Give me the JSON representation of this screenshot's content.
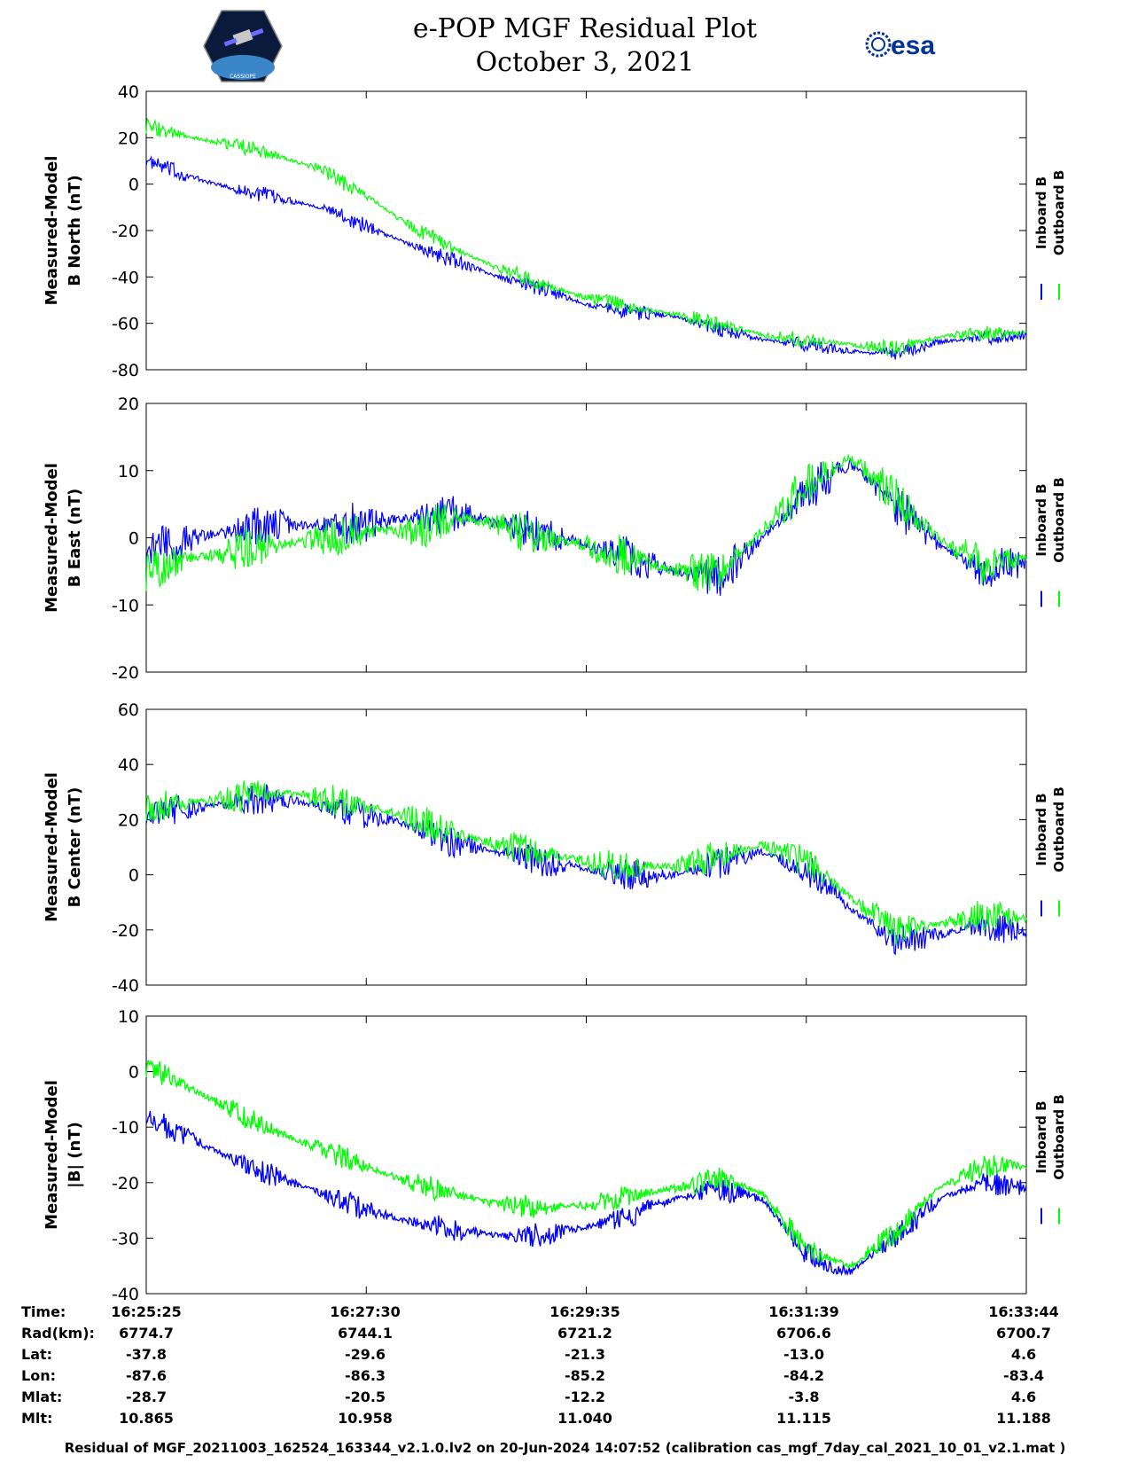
{
  "header": {
    "title": "e-POP MGF Residual Plot",
    "date": "October 3, 2021",
    "esa_logo_text": "esa",
    "left_logo_text": "CASSIOPE"
  },
  "colors": {
    "inboard": "#0000ff",
    "outboard": "#00ff00"
  },
  "chart_data": [
    {
      "type": "line",
      "ylabel": [
        "Measured-Model",
        "B North (nT)"
      ],
      "ylim": [
        -80,
        40
      ],
      "yticks": [
        40,
        20,
        0,
        -20,
        -40,
        -60,
        -80
      ],
      "legend": [
        "Inboard B",
        "Outboard B"
      ],
      "series": [
        {
          "name": "Inboard B",
          "x": [
            0,
            0.05,
            0.1,
            0.15,
            0.2,
            0.25,
            0.3,
            0.35,
            0.4,
            0.45,
            0.5,
            0.55,
            0.6,
            0.65,
            0.7,
            0.75,
            0.8,
            0.85,
            0.9,
            0.95,
            1.0
          ],
          "values": [
            10,
            3,
            -2,
            -6,
            -10,
            -18,
            -26,
            -33,
            -40,
            -45,
            -52,
            -55,
            -57,
            -62,
            -67,
            -69,
            -72,
            -73,
            -68,
            -66,
            -65
          ]
        },
        {
          "name": "Outboard B",
          "x": [
            0,
            0.05,
            0.1,
            0.15,
            0.2,
            0.25,
            0.3,
            0.35,
            0.4,
            0.45,
            0.5,
            0.55,
            0.6,
            0.65,
            0.7,
            0.75,
            0.8,
            0.85,
            0.9,
            0.95,
            1.0
          ],
          "values": [
            25,
            20,
            17,
            12,
            6,
            -5,
            -18,
            -28,
            -36,
            -43,
            -49,
            -53,
            -56,
            -60,
            -65,
            -67,
            -69,
            -71,
            -66,
            -64,
            -64
          ]
        }
      ]
    },
    {
      "type": "line",
      "ylabel": [
        "Measured-Model",
        "B East (nT)"
      ],
      "ylim": [
        -20,
        20
      ],
      "yticks": [
        20,
        10,
        0,
        -10,
        -20
      ],
      "legend": [
        "Inboard B",
        "Outboard B"
      ],
      "series": [
        {
          "name": "Inboard B",
          "x": [
            0,
            0.05,
            0.1,
            0.15,
            0.2,
            0.25,
            0.3,
            0.35,
            0.4,
            0.45,
            0.5,
            0.55,
            0.6,
            0.65,
            0.7,
            0.75,
            0.8,
            0.85,
            0.9,
            0.95,
            1.0
          ],
          "values": [
            -2,
            0,
            1,
            2,
            2,
            2,
            3,
            4,
            2,
            1,
            -1,
            -3,
            -5,
            -6,
            0,
            7,
            11,
            5,
            -1,
            -5,
            -4
          ]
        },
        {
          "name": "Outboard B",
          "x": [
            0,
            0.05,
            0.1,
            0.15,
            0.2,
            0.25,
            0.3,
            0.35,
            0.4,
            0.45,
            0.5,
            0.55,
            0.6,
            0.65,
            0.7,
            0.75,
            0.8,
            0.85,
            0.9,
            0.95,
            1.0
          ],
          "values": [
            -5,
            -3,
            -2,
            -1,
            0,
            1,
            1,
            3,
            2,
            0,
            -1,
            -3,
            -5,
            -5,
            1,
            8,
            12,
            6,
            0,
            -4,
            -3
          ]
        }
      ]
    },
    {
      "type": "line",
      "ylabel": [
        "Measured-Model",
        "B Center (nT)"
      ],
      "ylim": [
        -40,
        60
      ],
      "yticks": [
        60,
        40,
        20,
        0,
        -20,
        -40
      ],
      "legend": [
        "Inboard B",
        "Outboard B"
      ],
      "series": [
        {
          "name": "Inboard B",
          "x": [
            0,
            0.05,
            0.1,
            0.15,
            0.2,
            0.25,
            0.3,
            0.35,
            0.4,
            0.45,
            0.5,
            0.55,
            0.6,
            0.65,
            0.7,
            0.75,
            0.8,
            0.85,
            0.9,
            0.95,
            1.0
          ],
          "values": [
            22,
            24,
            26,
            28,
            25,
            22,
            18,
            12,
            8,
            5,
            2,
            0,
            0,
            4,
            8,
            2,
            -12,
            -24,
            -22,
            -18,
            -20
          ]
        },
        {
          "name": "Outboard B",
          "x": [
            0,
            0.05,
            0.1,
            0.15,
            0.2,
            0.25,
            0.3,
            0.35,
            0.4,
            0.45,
            0.5,
            0.55,
            0.6,
            0.65,
            0.7,
            0.75,
            0.8,
            0.85,
            0.9,
            0.95,
            1.0
          ],
          "values": [
            25,
            26,
            28,
            30,
            28,
            25,
            21,
            15,
            11,
            8,
            5,
            3,
            3,
            7,
            11,
            5,
            -8,
            -20,
            -18,
            -14,
            -16
          ]
        }
      ]
    },
    {
      "type": "line",
      "ylabel": [
        "Measured-Model",
        "|B| (nT)"
      ],
      "ylim": [
        -40,
        10
      ],
      "yticks": [
        10,
        0,
        -10,
        -20,
        -30,
        -40
      ],
      "legend": [
        "Inboard B",
        "Outboard B"
      ],
      "series": [
        {
          "name": "Inboard B",
          "x": [
            0,
            0.05,
            0.1,
            0.15,
            0.2,
            0.25,
            0.3,
            0.35,
            0.4,
            0.45,
            0.5,
            0.55,
            0.6,
            0.65,
            0.7,
            0.75,
            0.8,
            0.85,
            0.9,
            0.95,
            1.0
          ],
          "values": [
            -8,
            -12,
            -16,
            -19,
            -22,
            -25,
            -27,
            -28.5,
            -29.5,
            -29.5,
            -28,
            -26,
            -23,
            -21,
            -23,
            -33,
            -36,
            -30,
            -23,
            -20,
            -21
          ]
        },
        {
          "name": "Outboard B",
          "x": [
            0,
            0.05,
            0.1,
            0.15,
            0.2,
            0.25,
            0.3,
            0.35,
            0.4,
            0.45,
            0.5,
            0.55,
            0.6,
            0.65,
            0.7,
            0.75,
            0.8,
            0.85,
            0.9,
            0.95,
            1.0
          ],
          "values": [
            1,
            -3,
            -7,
            -11,
            -14,
            -17,
            -20,
            -22,
            -24,
            -24.5,
            -24,
            -22.5,
            -21,
            -19,
            -22,
            -32,
            -35,
            -29,
            -21,
            -17,
            -17
          ]
        }
      ]
    }
  ],
  "table": {
    "labels": [
      "Time:",
      "Rad(km):",
      "Lat:",
      "Lon:",
      "Mlat:",
      "Mlt:"
    ],
    "columns": [
      [
        "16:25:25",
        "6774.7",
        "-37.8",
        "-87.6",
        "-28.7",
        "10.865"
      ],
      [
        "16:27:30",
        "6744.1",
        "-29.6",
        "-86.3",
        "-20.5",
        "10.958"
      ],
      [
        "16:29:35",
        "6721.2",
        "-21.3",
        "-85.2",
        "-12.2",
        "11.040"
      ],
      [
        "16:31:39",
        "6706.6",
        "-13.0",
        "-84.2",
        "-3.8",
        "11.115"
      ],
      [
        "16:33:44",
        "6700.7",
        "4.6",
        "-83.4",
        "4.6",
        "11.188"
      ]
    ]
  },
  "footer": "Residual of MGF_20211003_162524_163344_v2.1.0.lv2 on 20-Jun-2024 14:07:52 (calibration cas_mgf_7day_cal_2021_10_01_v2.1.mat )"
}
